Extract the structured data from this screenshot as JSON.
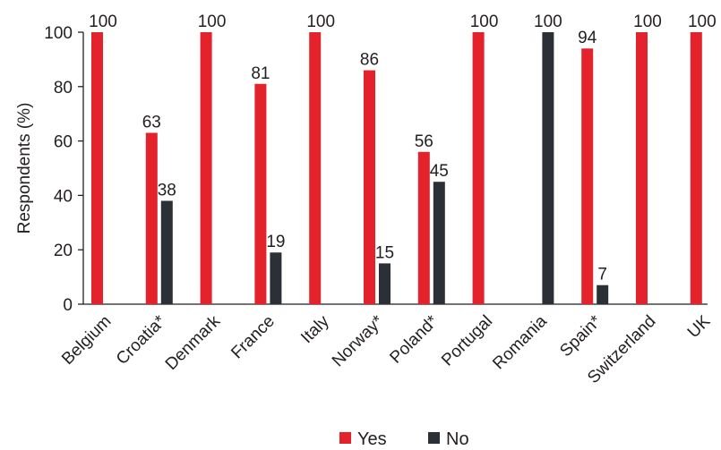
{
  "chart_data": {
    "type": "bar",
    "categories": [
      "Belgium",
      "Croatia*",
      "Denmark",
      "France",
      "Italy",
      "Norway*",
      "Poland*",
      "Portugal",
      "Romania",
      "Spain*",
      "Switzerland",
      "UK"
    ],
    "series": [
      {
        "name": "Yes",
        "color": "#e3222b",
        "values": [
          100,
          63,
          100,
          81,
          100,
          86,
          56,
          100,
          null,
          94,
          100,
          100
        ],
        "labels": [
          "100",
          "63",
          "100",
          "81",
          "100",
          "86",
          "56",
          "100",
          "",
          "94",
          "100",
          "100"
        ]
      },
      {
        "name": "No",
        "color": "#2b3037",
        "values": [
          null,
          38,
          null,
          19,
          null,
          15,
          45,
          null,
          100,
          7,
          null,
          null
        ],
        "labels": [
          "",
          "38",
          "",
          "19",
          "",
          "15",
          "45",
          "",
          "100",
          "7",
          "",
          ""
        ]
      }
    ],
    "ylabel": "Respondents (%)",
    "ylim": [
      0,
      100
    ],
    "yticks": [
      0,
      20,
      40,
      60,
      80,
      100
    ],
    "grid": false,
    "legend": "bottom-center"
  }
}
